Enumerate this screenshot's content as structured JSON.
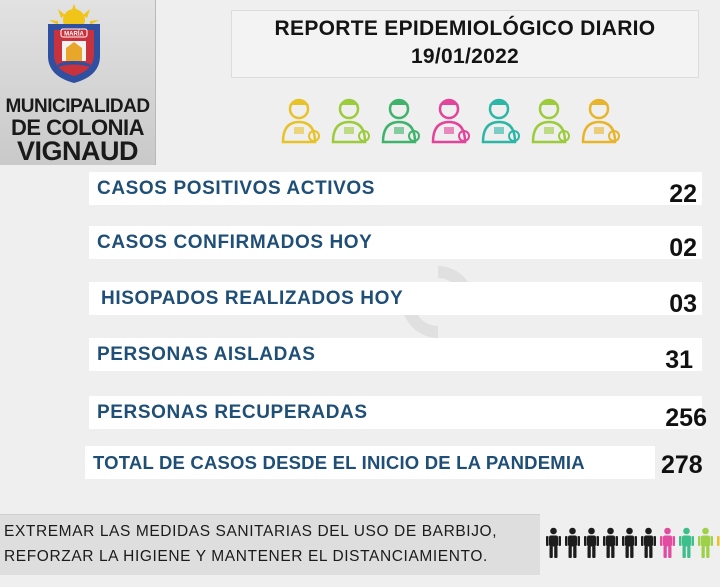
{
  "logo": {
    "emblem_text": "MARÍA",
    "line1": "MUNICIPALIDAD",
    "line2": "DE COLONIA",
    "line3": "VIGNAUD"
  },
  "header": {
    "title": "REPORTE EPIDEMIOLÓGICO DIARIO",
    "date": "19/01/2022"
  },
  "workers_icons": [
    {
      "name": "doctor-icon",
      "color": "#e7c229"
    },
    {
      "name": "nurse-icon",
      "color": "#9ccb3b"
    },
    {
      "name": "builder-icon",
      "color": "#3fb36b"
    },
    {
      "name": "pharmacist-icon",
      "color": "#e3439b"
    },
    {
      "name": "delivery-icon",
      "color": "#2bb6a6"
    },
    {
      "name": "painter-icon",
      "color": "#9ccb3b"
    },
    {
      "name": "firefighter-icon",
      "color": "#e7b42a"
    }
  ],
  "stats": [
    {
      "label": "CASOS POSITIVOS ACTIVOS",
      "value": "22"
    },
    {
      "label": "CASOS CONFIRMADOS HOY",
      "value": "02"
    },
    {
      "label": "HISOPADOS REALIZADOS HOY",
      "value": "03"
    },
    {
      "label": "PERSONAS AISLADAS",
      "value": "31"
    },
    {
      "label": "PERSONAS RECUPERADAS",
      "value": "256"
    },
    {
      "label": "TOTAL DE CASOS DESDE EL INICIO DE LA PANDEMIA",
      "value": "278"
    }
  ],
  "footer": {
    "line1": "EXTREMAR LAS MEDIDAS SANITARIAS DEL USO DE BARBIJO,",
    "line2": "REFORZAR LA HIGIENE Y MANTENER EL DISTANCIAMIENTO."
  },
  "people_colors": [
    "#1c1c1c",
    "#1c1c1c",
    "#1c1c1c",
    "#1c1c1c",
    "#1c1c1c",
    "#1c1c1c",
    "#e34ba0",
    "#3cbf8a",
    "#9fd04a",
    "#e7c229",
    "#2aa7d6"
  ]
}
